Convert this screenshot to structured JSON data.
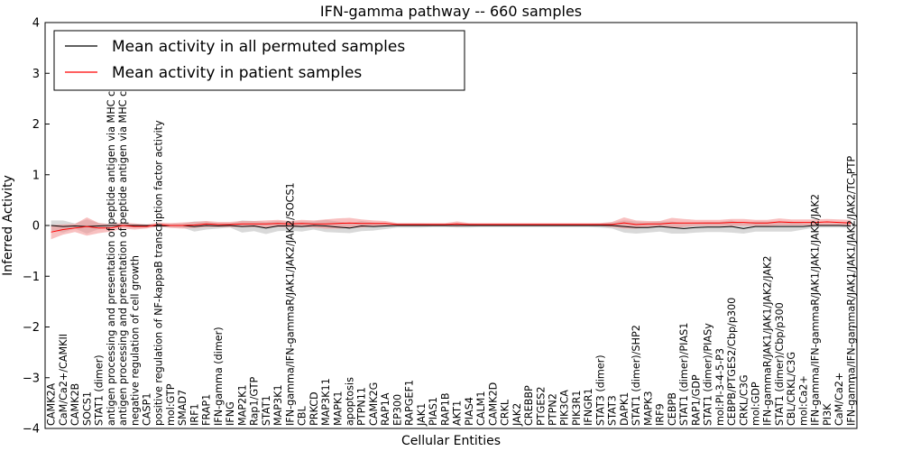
{
  "chart_data": {
    "type": "line",
    "title": "IFN-gamma pathway -- 660 samples",
    "xlabel": "Cellular Entities",
    "ylabel": "Inferred Activity",
    "ylim": [
      -4,
      4
    ],
    "yticks": [
      -4,
      -3,
      -2,
      -1,
      0,
      1,
      2,
      3,
      4
    ],
    "ytick_labels": [
      "−4",
      "−3",
      "−2",
      "−1",
      "0",
      "1",
      "2",
      "3",
      "4"
    ],
    "grid": false,
    "legend": "top-left",
    "categories": [
      "CAMK2A",
      "CaM/Ca2+/CAMKII",
      "CAMK2B",
      "SOCS1",
      "STAT1 (dimer)",
      "antigen processing and presentation of peptide antigen via MHC class I",
      "antigen processing and presentation of peptide antigen via MHC class II",
      "negative regulation of cell growth",
      "CASP1",
      "positive regulation of NF-kappaB transcription factor activity",
      "mol:GTP",
      "SMAD7",
      "IRF1",
      "FRAP1",
      "IFN-gamma (dimer)",
      "IFNG",
      "MAP2K1",
      "Rap1/GTP",
      "STAT1",
      "MAP3K1",
      "IFN-gamma/IFN-gammaR/JAK1/JAK2/JAK2/SOCS1",
      "CBL",
      "PRKCD",
      "MAP3K11",
      "MAPK1",
      "apoptosis",
      "PTPN11",
      "CAMK2G",
      "RAP1A",
      "EP300",
      "RAPGEF1",
      "JAK1",
      "PIAS1",
      "RAP1B",
      "AKT1",
      "PIAS4",
      "CALM1",
      "CAMK2D",
      "CRKL",
      "JAK2",
      "CREBBP",
      "PTGES2",
      "PTPN2",
      "PIK3CA",
      "PIK3R1",
      "IFNGR1",
      "STAT3 (dimer)",
      "STAT3",
      "DAPK1",
      "STAT1 (dimer)/SHP2",
      "MAPK3",
      "IRF9",
      "CEBPB",
      "STAT1 (dimer)/PIAS1",
      "RAP1/GDP",
      "STAT1 (dimer)/PIASy",
      "mol:PI-3-4-5-P3",
      "CEBPB/PTGES2/Cbp/p300",
      "CRKL/C3G",
      "mol:GDP",
      "IFN-gammaR/JAK1/JAK1/JAK2/JAK2",
      "STAT1 (dimer)/Cbp/p300",
      "CBL/CRKL/C3G",
      "mol:Ca2+",
      "IFN-gamma/IFN-gammaR/JAK1/JAK1/JAK2/JAK2",
      "PI3K",
      "CaM/Ca2+",
      "IFN-gamma/IFN-gammaR/JAK1/JAK1/JAK2/JAK2/TC-PTP"
    ],
    "series": [
      {
        "name": "Mean activity in all permuted samples",
        "color": "#000000",
        "band_color": "#c0c0c0",
        "values": [
          0,
          -0.02,
          -0.01,
          -0.02,
          -0.01,
          0,
          0,
          0,
          0,
          -0.01,
          0,
          0,
          -0.02,
          0,
          -0.01,
          0,
          -0.02,
          -0.01,
          -0.05,
          -0.01,
          -0.01,
          -0.02,
          0,
          -0.01,
          -0.03,
          -0.05,
          -0.01,
          -0.02,
          -0.01,
          0,
          0,
          0,
          0,
          0,
          0,
          0,
          0,
          0,
          0,
          0,
          0,
          0,
          0,
          0,
          0,
          0,
          0,
          0,
          -0.02,
          -0.04,
          -0.04,
          -0.02,
          -0.04,
          -0.06,
          -0.04,
          -0.03,
          -0.03,
          -0.02,
          -0.06,
          -0.02,
          -0.02,
          -0.02,
          -0.02,
          -0.02,
          0,
          0,
          0,
          -0.01
        ],
        "band_half_width": [
          0.1,
          0.12,
          0.05,
          0.14,
          0.06,
          0.03,
          0.03,
          0.03,
          0.02,
          0.02,
          0.03,
          0.04,
          0.1,
          0.08,
          0.05,
          0.04,
          0.12,
          0.1,
          0.12,
          0.1,
          0.09,
          0.1,
          0.08,
          0.12,
          0.11,
          0.1,
          0.1,
          0.08,
          0.06,
          0.04,
          0.04,
          0.04,
          0.03,
          0.03,
          0.04,
          0.04,
          0.03,
          0.03,
          0.03,
          0.03,
          0.03,
          0.03,
          0.03,
          0.03,
          0.03,
          0.03,
          0.04,
          0.06,
          0.12,
          0.12,
          0.1,
          0.1,
          0.12,
          0.1,
          0.1,
          0.1,
          0.1,
          0.12,
          0.1,
          0.1,
          0.1,
          0.1,
          0.1,
          0.06,
          0.04,
          0.04,
          0.04,
          0.04
        ]
      },
      {
        "name": "Mean activity in patient samples",
        "color": "#ff0000",
        "band_color": "#f28c8c",
        "values": [
          -0.13,
          -0.08,
          -0.05,
          -0.02,
          -0.05,
          -0.05,
          0,
          -0.02,
          -0.02,
          0.02,
          0,
          0,
          0.01,
          0.03,
          0.02,
          0.02,
          0.03,
          0.03,
          0.03,
          0.04,
          0.03,
          0.04,
          0.03,
          0.03,
          0.04,
          0.05,
          0.04,
          0.04,
          0.04,
          0.02,
          0.02,
          0.02,
          0.02,
          0.02,
          0.03,
          0.02,
          0.02,
          0.02,
          0.02,
          0.02,
          0.02,
          0.02,
          0.02,
          0.02,
          0.02,
          0.02,
          0.02,
          0.02,
          0.05,
          0.02,
          0.03,
          0.03,
          0.05,
          0.05,
          0.05,
          0.05,
          0.05,
          0.06,
          0.06,
          0.05,
          0.05,
          0.07,
          0.06,
          0.06,
          0.06,
          0.07,
          0.06,
          0.05
        ],
        "band_half_width": [
          0.14,
          0.1,
          0.08,
          0.18,
          0.1,
          0.07,
          0.06,
          0.06,
          0.04,
          0.04,
          0.05,
          0.06,
          0.06,
          0.06,
          0.05,
          0.05,
          0.06,
          0.06,
          0.07,
          0.07,
          0.06,
          0.07,
          0.07,
          0.09,
          0.1,
          0.1,
          0.08,
          0.06,
          0.05,
          0.03,
          0.03,
          0.03,
          0.03,
          0.03,
          0.05,
          0.03,
          0.03,
          0.03,
          0.03,
          0.03,
          0.03,
          0.03,
          0.03,
          0.03,
          0.03,
          0.03,
          0.03,
          0.05,
          0.11,
          0.08,
          0.06,
          0.06,
          0.1,
          0.08,
          0.06,
          0.06,
          0.06,
          0.07,
          0.07,
          0.06,
          0.06,
          0.07,
          0.06,
          0.06,
          0.06,
          0.06,
          0.06,
          0.06
        ]
      }
    ]
  }
}
